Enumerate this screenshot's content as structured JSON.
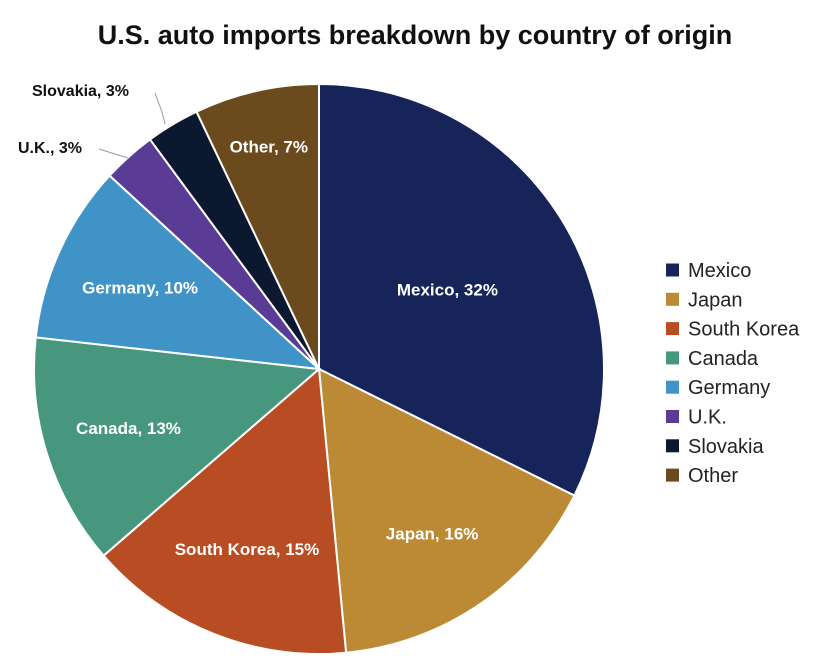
{
  "chart_data": {
    "type": "pie",
    "title": "U.S. auto imports breakdown by country of origin",
    "categories": [
      "Mexico",
      "Japan",
      "South Korea",
      "Canada",
      "Germany",
      "U.K.",
      "Slovakia",
      "Other"
    ],
    "values": [
      32,
      16,
      15,
      13,
      10,
      3,
      3,
      7
    ],
    "data_labels": [
      "Mexico, 32%",
      "Japan, 16%",
      "South Korea, 15%",
      "Canada, 13%",
      "Germany, 10%",
      "U.K., 3%",
      "Slovakia, 3%",
      "Other, 7%"
    ],
    "unit": "%",
    "colors": [
      "#16245a",
      "#bc8a34",
      "#b84c22",
      "#46977e",
      "#4093c7",
      "#5a3c96",
      "#0c1830",
      "#6b4b1e"
    ],
    "start_angle": "12 o'clock",
    "direction": "clockwise",
    "legend": {
      "position": "right",
      "entries": [
        "Mexico",
        "Japan",
        "South Korea",
        "Canada",
        "Germany",
        "U.K.",
        "Slovakia",
        "Other"
      ]
    }
  }
}
